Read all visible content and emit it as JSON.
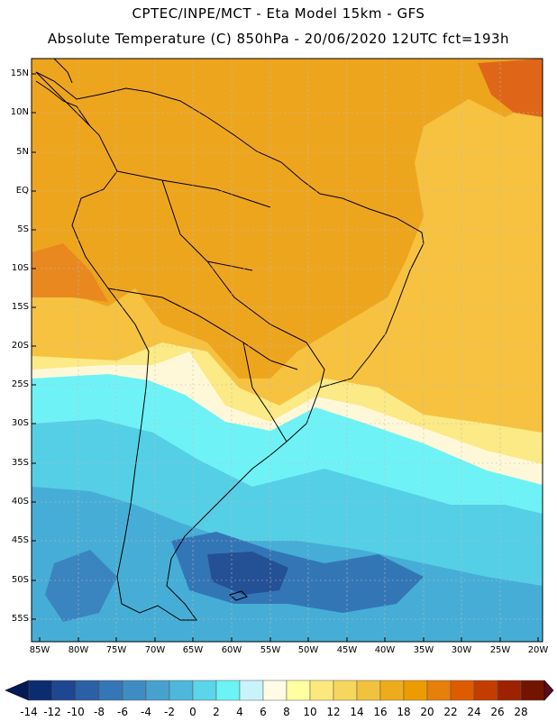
{
  "header": {
    "line1": "CPTEC/INPE/MCT -  Eta Model 15km - GFS",
    "line2": "Absolute Temperature (C) 850hPa - 20/06/2020 12UTC fct=193h"
  },
  "axes": {
    "lat_labels": [
      "15N",
      "10N",
      "5N",
      "EQ",
      "5S",
      "10S",
      "15S",
      "20S",
      "25S",
      "30S",
      "35S",
      "40S",
      "45S",
      "50S",
      "55S"
    ],
    "lon_labels": [
      "85W",
      "80W",
      "75W",
      "70W",
      "65W",
      "60W",
      "55W",
      "50W",
      "45W",
      "40W",
      "35W",
      "30W",
      "25W",
      "20W"
    ]
  },
  "colorbar": {
    "labels": [
      "-14",
      "-12",
      "-10",
      "-8",
      "-6",
      "-4",
      "-2",
      "0",
      "2",
      "4",
      "6",
      "8",
      "10",
      "12",
      "14",
      "16",
      "18",
      "20",
      "22",
      "24",
      "26",
      "28"
    ],
    "colors": [
      "#0c2c72",
      "#1f4690",
      "#2b5fa6",
      "#3576b7",
      "#3f8cc4",
      "#46a1cf",
      "#4fb6dc",
      "#5bd5ea",
      "#6bf3f6",
      "#c8f3fb",
      "#fffbe5",
      "#ffffa0",
      "#fbe97e",
      "#f6d65c",
      "#f1c23d",
      "#eeac1c",
      "#ec9c00",
      "#e77f0b",
      "#df5b00",
      "#c43d00",
      "#9f2200",
      "#731400"
    ],
    "low_arrow_color": "#041a56",
    "high_arrow_color": "#5c0a1e"
  }
}
